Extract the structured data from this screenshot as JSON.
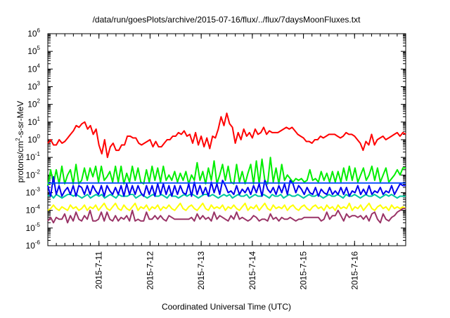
{
  "chart_data": {
    "type": "line",
    "title": "/data/run/goesPlots/archive/2015-07-16/flux/../flux/7daysMoonFluxes.txt",
    "xlabel": "Coordinated Universal Time (UTC)",
    "ylabel": {
      "prefix": "protons/cm",
      "sup": "2",
      "suffix": "-s-sr-MeV"
    },
    "yscale": "log",
    "ylim": [
      1e-06,
      1000000.0
    ],
    "y_ticks": [
      {
        "base": "10",
        "exp": "-6",
        "value": 1e-06
      },
      {
        "base": "10",
        "exp": "-5",
        "value": 1e-05
      },
      {
        "base": "10",
        "exp": "-4",
        "value": 0.0001
      },
      {
        "base": "10",
        "exp": "-3",
        "value": 0.001
      },
      {
        "base": "10",
        "exp": "-2",
        "value": 0.01
      },
      {
        "base": "10",
        "exp": "-1",
        "value": 0.1
      },
      {
        "base": "10",
        "exp": "0",
        "value": 1
      },
      {
        "base": "10",
        "exp": "1",
        "value": 10
      },
      {
        "base": "10",
        "exp": "2",
        "value": 100
      },
      {
        "base": "10",
        "exp": "3",
        "value": 1000
      },
      {
        "base": "10",
        "exp": "4",
        "value": 10000
      },
      {
        "base": "10",
        "exp": "5",
        "value": 100000
      },
      {
        "base": "10",
        "exp": "6",
        "value": 1000000
      }
    ],
    "x_range_days": [
      0,
      7
    ],
    "x_ticks": [
      {
        "label": "2015-7-11",
        "day": 1
      },
      {
        "label": "2015-7-12",
        "day": 2
      },
      {
        "label": "2015-7-13",
        "day": 3
      },
      {
        "label": "2015-7-14",
        "day": 4
      },
      {
        "label": "2015-7-15",
        "day": 5
      },
      {
        "label": "2015-7-16",
        "day": 6
      }
    ],
    "series": [
      {
        "name": "red",
        "color": "#ff0000",
        "log10_values": [
          -0.2,
          0.0,
          -0.3,
          -0.3,
          0.0,
          -0.2,
          -0.1,
          0.1,
          0.3,
          0.5,
          0.8,
          0.7,
          0.9,
          1.0,
          0.6,
          0.8,
          0.3,
          0.6,
          -0.3,
          -0.8,
          0.0,
          -1.0,
          -0.4,
          -0.2,
          -0.6,
          -0.6,
          -0.3,
          -0.3,
          0.2,
          0.2,
          0.1,
          0.1,
          -0.2,
          -0.3,
          -0.2,
          -0.1,
          0.0,
          -0.4,
          -0.1,
          -0.4,
          -0.4,
          -0.2,
          0.0,
          0.0,
          0.2,
          0.2,
          0.4,
          0.3,
          0.5,
          0.2,
          0.3,
          -0.2,
          0.4,
          -0.3,
          0.2,
          -0.4,
          0.1,
          -0.5,
          0.2,
          0.1,
          0.6,
          1.3,
          0.8,
          1.5,
          0.9,
          0.7,
          -0.2,
          0.4,
          0.0,
          0.6,
          0.2,
          0.4,
          0.1,
          0.6,
          0.3,
          0.4,
          0.7,
          0.3,
          0.5,
          0.4,
          0.4,
          0.4,
          0.5,
          0.6,
          0.7,
          0.6,
          0.7,
          0.5,
          0.3,
          0.2,
          0.1,
          -0.1,
          -0.1,
          -0.2,
          0.0,
          0.0,
          0.2,
          0.1,
          0.2,
          0.3,
          0.3,
          0.3,
          0.2,
          0.1,
          0.2,
          0.4,
          0.3,
          0.3,
          0.2,
          0.0,
          -0.2,
          -0.6,
          -0.1,
          -0.3,
          0.3,
          -0.3,
          0.0,
          0.1,
          0.2,
          0.0,
          0.1,
          0.2,
          0.3,
          0.4,
          0.2,
          0.4,
          0.3
        ]
      },
      {
        "name": "green",
        "color": "#00ee00",
        "log10_values": [
          -2.6,
          -1.7,
          -2.5,
          -1.7,
          -2.5,
          -1.5,
          -2.5,
          -2.0,
          -1.7,
          -2.5,
          -1.4,
          -2.5,
          -2.3,
          -1.6,
          -2.3,
          -1.6,
          -2.1,
          -1.5,
          -2.4,
          -1.5,
          -2.3,
          -2.1,
          -1.8,
          -2.4,
          -1.5,
          -2.4,
          -1.5,
          -2.5,
          -1.9,
          -2.4,
          -1.5,
          -2.3,
          -1.6,
          -2.4,
          -2.5,
          -1.7,
          -2.4,
          -1.5,
          -2.3,
          -1.6,
          -2.4,
          -1.5,
          -2.3,
          -2.0,
          -2.3,
          -1.8,
          -2.4,
          -1.9,
          -2.3,
          -1.8,
          -2.5,
          -2.0,
          -2.3,
          -1.3,
          -2.3,
          -1.8,
          -2.5,
          -1.6,
          -2.3,
          -1.2,
          -2.5,
          -2.0,
          -1.4,
          -2.3,
          -1.5,
          -2.4,
          -2.5,
          -1.4,
          -2.4,
          -1.8,
          -2.5,
          -1.9,
          -1.4,
          -2.5,
          -1.2,
          -2.5,
          -1.1,
          -2.3,
          -2.5,
          -1.0,
          -2.4,
          -1.6,
          -2.5,
          -1.4,
          -2.3,
          -2.0,
          -2.2,
          -2.4,
          -2.2,
          -2.3,
          -2.2,
          -2.4,
          -2.3,
          -1.7,
          -2.3,
          -2.2,
          -2.4,
          -1.8,
          -2.3,
          -1.9,
          -2.4,
          -1.8,
          -2.4,
          -1.8,
          -2.4,
          -1.6,
          -2.3,
          -1.5,
          -2.3,
          -1.6,
          -2.4,
          -2.0,
          -1.6,
          -2.3,
          -2.0,
          -1.5,
          -2.3,
          -1.6,
          -2.4,
          -2.0,
          -1.6,
          -2.4,
          -2.2,
          -2.0,
          -1.7,
          -2.0,
          -1.6,
          -1.6
        ]
      },
      {
        "name": "cyan",
        "color": "#00c8a0",
        "log10_values": [
          -3.2,
          -3.1,
          -3.3,
          -3.1,
          -3.2,
          -3.3,
          -3.2,
          -3.1,
          -3.1,
          -3.2,
          -3.1,
          -3.2,
          -3.3,
          -3.2,
          -3.1,
          -3.3,
          -3.2,
          -3.1,
          -3.2,
          -3.1,
          -3.3,
          -3.2,
          -3.1,
          -3.2,
          -3.3,
          -3.1,
          -3.2,
          -3.2,
          -3.2,
          -3.1,
          -3.1,
          -3.3,
          -3.2,
          -3.1,
          -3.2,
          -3.3,
          -3.2,
          -3.1,
          -3.2,
          -3.2,
          -3.1,
          -3.2,
          -3.3,
          -3.1,
          -3.2,
          -3.2,
          -3.3,
          -3.2,
          -3.1,
          -3.2,
          -3.1,
          -3.1,
          -3.2,
          -3.3,
          -3.2,
          -3.1,
          -3.1,
          -3.2,
          -3.1,
          -3.2,
          -3.3,
          -3.2,
          -3.1,
          -3.2,
          -3.1,
          -3.3,
          -3.2,
          -3.1,
          -3.2,
          -3.2,
          -3.1,
          -3.3,
          -3.2,
          -3.1,
          -3.2,
          -3.2,
          -3.1,
          -3.2,
          -3.3,
          -3.1,
          -3.2,
          -3.2,
          -3.1,
          -3.3,
          -3.2,
          -3.1,
          -3.2,
          -3.2,
          -3.1,
          -3.2,
          -3.3,
          -3.2,
          -3.1,
          -3.2,
          -3.2,
          -3.1,
          -3.2,
          -3.3,
          -3.2,
          -3.1,
          -3.2,
          -3.2,
          -3.1,
          -3.2,
          -3.3,
          -3.1,
          -3.2,
          -3.2,
          -3.1,
          -3.2,
          -3.3,
          -3.2,
          -3.1,
          -3.2,
          -3.2,
          -3.1,
          -3.2,
          -3.3,
          -3.2,
          -3.1,
          -3.2,
          -3.1,
          -3.2,
          -3.3,
          -3.2,
          -3.2,
          -3.2
        ]
      },
      {
        "name": "blue",
        "color": "#0000ee",
        "log10_values": [
          -2.6,
          -3.2,
          -2.1,
          -3.1,
          -2.6,
          -3.2,
          -2.9,
          -2.7,
          -3.1,
          -2.6,
          -3.2,
          -2.6,
          -2.7,
          -3.1,
          -2.6,
          -3.1,
          -2.6,
          -2.9,
          -3.1,
          -2.6,
          -3.2,
          -2.6,
          -2.9,
          -3.1,
          -2.7,
          -3.1,
          -2.6,
          -3.2,
          -2.5,
          -3.1,
          -2.6,
          -3.1,
          -2.6,
          -3.0,
          -3.2,
          -2.6,
          -3.1,
          -2.6,
          -3.2,
          -2.5,
          -3.1,
          -2.5,
          -3.1,
          -2.6,
          -3.2,
          -2.6,
          -3.1,
          -2.6,
          -3.0,
          -3.1,
          -2.5,
          -3.2,
          -2.4,
          -3.1,
          -2.6,
          -3.1,
          -2.7,
          -3.2,
          -2.4,
          -3.0,
          -2.5,
          -3.1,
          -2.3,
          -2.6,
          -3.0,
          -2.9,
          -3.1,
          -2.6,
          -3.1,
          -2.8,
          -3.0,
          -2.7,
          -3.1,
          -2.6,
          -3.0,
          -2.5,
          -3.2,
          -2.3,
          -2.8,
          -3.0,
          -2.7,
          -3.1,
          -2.6,
          -3.0,
          -2.5,
          -3.1,
          -2.3,
          -2.5,
          -3.0,
          -2.6,
          -2.8,
          -3.1,
          -2.7,
          -3.0,
          -3.1,
          -2.7,
          -3.2,
          -2.8,
          -3.0,
          -3.1,
          -2.7,
          -3.1,
          -2.9,
          -3.1,
          -2.7,
          -3.1,
          -2.7,
          -3.2,
          -2.9,
          -3.0,
          -2.6,
          -3.1,
          -2.8,
          -3.1,
          -2.6,
          -3.1,
          -2.9,
          -3.0,
          -2.7,
          -3.1,
          -2.9,
          -3.0,
          -2.6,
          -3.1,
          -2.8,
          -2.5,
          -2.6,
          -2.6
        ]
      },
      {
        "name": "blue-baseline",
        "color": "#0044ff",
        "log10_values": [
          -2.45,
          -2.45,
          -2.45,
          -2.45,
          -2.45,
          -2.45,
          -2.45,
          -2.45,
          -2.45,
          -2.45,
          -2.45,
          -2.45,
          -2.45,
          -2.45,
          -2.45,
          -2.45,
          -2.45,
          -2.45,
          -2.45,
          -2.45,
          -2.45,
          -2.45,
          -2.45,
          -2.45,
          -2.45,
          -2.45,
          -2.45,
          -2.45,
          -2.45,
          -2.45,
          -2.45,
          -2.45,
          -2.45,
          -2.45,
          -2.45,
          -2.45,
          -2.45,
          -2.45,
          -2.45,
          -2.45,
          -2.45,
          -2.45,
          -2.45,
          -2.45,
          -2.45,
          -2.45,
          -2.45,
          -2.45,
          -2.45,
          -2.45,
          -2.45,
          -2.45,
          -2.45,
          -2.45,
          -2.45,
          -2.45,
          -2.45,
          -2.45,
          -2.45,
          -2.45,
          -2.45,
          -2.45,
          -2.45,
          -2.45,
          -2.45,
          -2.45,
          -2.45,
          -2.45,
          -2.45,
          -2.45,
          -2.45,
          -2.45,
          -2.45,
          -2.45,
          -2.45,
          -2.45,
          -2.45,
          -2.45,
          -2.45,
          -2.45,
          -2.45,
          -2.45,
          -2.45,
          -2.45,
          -2.45,
          -2.45,
          -2.45,
          -2.45,
          -2.45,
          -2.45,
          -2.45,
          -2.45,
          -2.45,
          -2.45,
          -2.45,
          -2.45,
          -2.45,
          -2.45,
          -2.45,
          -2.45,
          -2.45,
          -2.45,
          -2.45,
          -2.45,
          -2.45,
          -2.45,
          -2.45,
          -2.45,
          -2.45,
          -2.45,
          -2.45,
          -2.45,
          -2.45,
          -2.45,
          -2.45,
          -2.45,
          -2.45,
          -2.45,
          -2.45,
          -2.45,
          -2.45,
          -2.45,
          -2.45,
          -2.45,
          -2.45,
          -2.45,
          -2.45,
          -2.45
        ]
      },
      {
        "name": "yellow",
        "color": "#ffff00",
        "log10_values": [
          -4.0,
          -3.9,
          -3.7,
          -3.9,
          -4.0,
          -3.8,
          -3.9,
          -4.0,
          -3.7,
          -3.9,
          -3.8,
          -4.0,
          -3.9,
          -3.7,
          -4.0,
          -3.8,
          -3.9,
          -3.7,
          -4.0,
          -3.8,
          -3.6,
          -3.9,
          -4.0,
          -3.8,
          -3.6,
          -3.9,
          -4.0,
          -3.7,
          -3.9,
          -4.0,
          -3.8,
          -3.6,
          -4.0,
          -3.8,
          -3.9,
          -3.7,
          -4.0,
          -3.8,
          -3.9,
          -3.7,
          -4.0,
          -3.8,
          -3.9,
          -3.7,
          -3.9,
          -4.0,
          -3.8,
          -3.6,
          -3.9,
          -4.0,
          -3.8,
          -3.7,
          -3.9,
          -4.0,
          -3.8,
          -3.6,
          -3.9,
          -4.0,
          -3.7,
          -3.9,
          -3.8,
          -3.9,
          -3.7,
          -4.0,
          -3.8,
          -3.9,
          -3.7,
          -3.9,
          -4.0,
          -3.8,
          -3.6,
          -4.0,
          -3.8,
          -3.9,
          -3.7,
          -4.0,
          -3.8,
          -3.6,
          -3.9,
          -4.0,
          -3.7,
          -3.9,
          -3.8,
          -3.9,
          -3.7,
          -4.0,
          -3.8,
          -3.7,
          -3.9,
          -4.0,
          -3.8,
          -3.7,
          -3.9,
          -4.0,
          -3.8,
          -3.7,
          -3.9,
          -3.8,
          -4.0,
          -3.7,
          -3.9,
          -3.8,
          -4.0,
          -3.7,
          -3.9,
          -3.8,
          -3.9,
          -3.6,
          -4.0,
          -3.8,
          -3.9,
          -3.7,
          -4.0,
          -3.8,
          -3.6,
          -3.9,
          -4.0,
          -3.8,
          -3.7,
          -3.9,
          -3.8,
          -4.0,
          -3.7,
          -3.9,
          -3.8,
          -3.9,
          -3.8,
          -3.9
        ]
      },
      {
        "name": "purple",
        "color": "#993366",
        "log10_values": [
          -4.6,
          -4.4,
          -4.7,
          -4.4,
          -4.5,
          -4.5,
          -4.2,
          -4.7,
          -4.3,
          -4.6,
          -4.1,
          -4.5,
          -4.6,
          -4.3,
          -4.5,
          -4.0,
          -4.6,
          -4.6,
          -4.5,
          -4.1,
          -4.6,
          -4.1,
          -4.5,
          -4.6,
          -4.3,
          -4.6,
          -4.4,
          -4.5,
          -4.3,
          -4.6,
          -4.0,
          -4.6,
          -4.5,
          -4.6,
          -4.6,
          -4.1,
          -4.5,
          -4.5,
          -4.3,
          -4.5,
          -4.3,
          -4.5,
          -4.6,
          -4.3,
          -4.4,
          -4.5,
          -4.5,
          -4.5,
          -4.5,
          -4.5,
          -4.5,
          -4.4,
          -4.6,
          -4.2,
          -4.5,
          -4.3,
          -4.5,
          -4.4,
          -4.6,
          -4.1,
          -4.5,
          -4.3,
          -4.4,
          -4.5,
          -4.6,
          -4.3,
          -4.5,
          -4.1,
          -4.5,
          -4.4,
          -4.5,
          -4.6,
          -4.5,
          -4.3,
          -4.4,
          -4.6,
          -4.5,
          -4.5,
          -4.6,
          -4.2,
          -4.5,
          -4.4,
          -4.6,
          -4.4,
          -4.5,
          -4.5,
          -4.4,
          -4.5,
          -4.6,
          -4.5,
          -4.5,
          -4.4,
          -4.4,
          -4.4,
          -4.4,
          -4.4,
          -4.4,
          -4.6,
          -4.5,
          -4.1,
          -4.5,
          -4.3,
          -4.3,
          -4.0,
          -4.3,
          -4.6,
          -4.2,
          -4.4,
          -4.3,
          -4.3,
          -4.4,
          -4.3,
          -4.5,
          -4.3,
          -4.6,
          -4.2,
          -4.1,
          -4.5,
          -4.7,
          -4.2,
          -4.5,
          -4.6,
          -4.4,
          -4.3,
          -4.1,
          -4.0,
          -3.9,
          -3.9
        ]
      }
    ]
  }
}
